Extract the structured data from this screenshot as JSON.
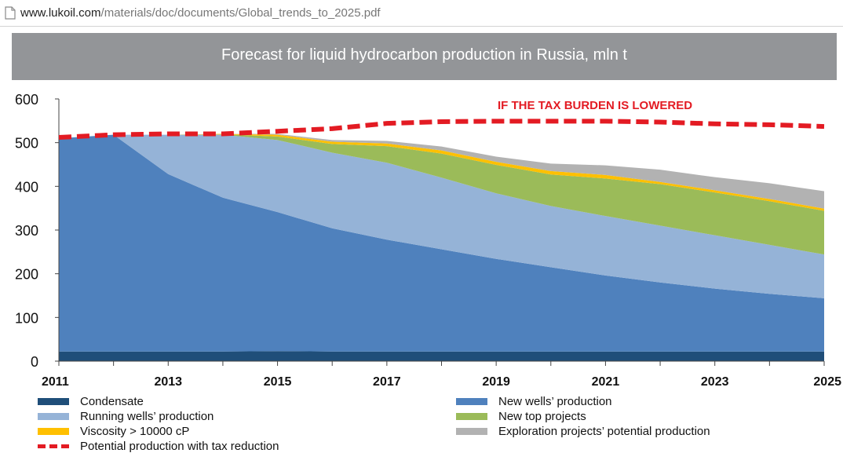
{
  "browser": {
    "url_domain": "www.lukoil.com",
    "url_path": "/materials/doc/documents/Global_trends_to_2025.pdf"
  },
  "chart_data": {
    "type": "area",
    "title": "Forecast for liquid hydrocarbon production in Russia, mln t",
    "xlabel": "",
    "ylabel": "",
    "x": [
      2011,
      2012,
      2013,
      2014,
      2015,
      2016,
      2017,
      2018,
      2019,
      2020,
      2021,
      2022,
      2023,
      2024,
      2025
    ],
    "xticks": [
      2011,
      2013,
      2015,
      2017,
      2019,
      2021,
      2023,
      2025
    ],
    "xlim": [
      2011,
      2025
    ],
    "yticks": [
      0,
      100,
      200,
      300,
      400,
      500,
      600
    ],
    "ylim": [
      0,
      600
    ],
    "stacked": true,
    "grid": false,
    "legend": "bottom",
    "annotation": "IF THE TAX BURDEN IS LOWERED",
    "series": [
      {
        "name": "Condensate",
        "color": "#1f4e79",
        "values": [
          22,
          22,
          22,
          22,
          23,
          22,
          22,
          22,
          22,
          22,
          22,
          22,
          22,
          22,
          22
        ]
      },
      {
        "name": "New wells’ production",
        "color": "#4f81bd",
        "values": [
          488,
          496,
          406,
          352,
          318,
          282,
          256,
          234,
          212,
          193,
          174,
          158,
          144,
          132,
          122
        ]
      },
      {
        "name": "Running wells’ production",
        "color": "#95b3d7",
        "values": [
          0,
          0,
          90,
          144,
          165,
          173,
          176,
          164,
          150,
          140,
          136,
          130,
          122,
          112,
          100
        ]
      },
      {
        "name": "New top projects",
        "color": "#9bbb59",
        "values": [
          0,
          0,
          0,
          1,
          8,
          20,
          38,
          55,
          65,
          72,
          86,
          95,
          98,
          100,
          100
        ]
      },
      {
        "name": "Viscosity > 10000 cP",
        "color": "#ffc000",
        "values": [
          0,
          0,
          0,
          1,
          4,
          5,
          6,
          7,
          7,
          8,
          8,
          5,
          5,
          5,
          5
        ]
      },
      {
        "name": "Exploration projects’ potential production",
        "color": "#b2b2b2",
        "values": [
          0,
          0,
          0,
          0,
          2,
          4,
          6,
          9,
          12,
          17,
          22,
          28,
          30,
          36,
          40
        ]
      }
    ],
    "line": {
      "name": "Potential production with tax reduction",
      "color": "#e31b23",
      "values": [
        512,
        518,
        520,
        520,
        526,
        532,
        544,
        548,
        549,
        549,
        549,
        547,
        543,
        541,
        537
      ]
    }
  }
}
